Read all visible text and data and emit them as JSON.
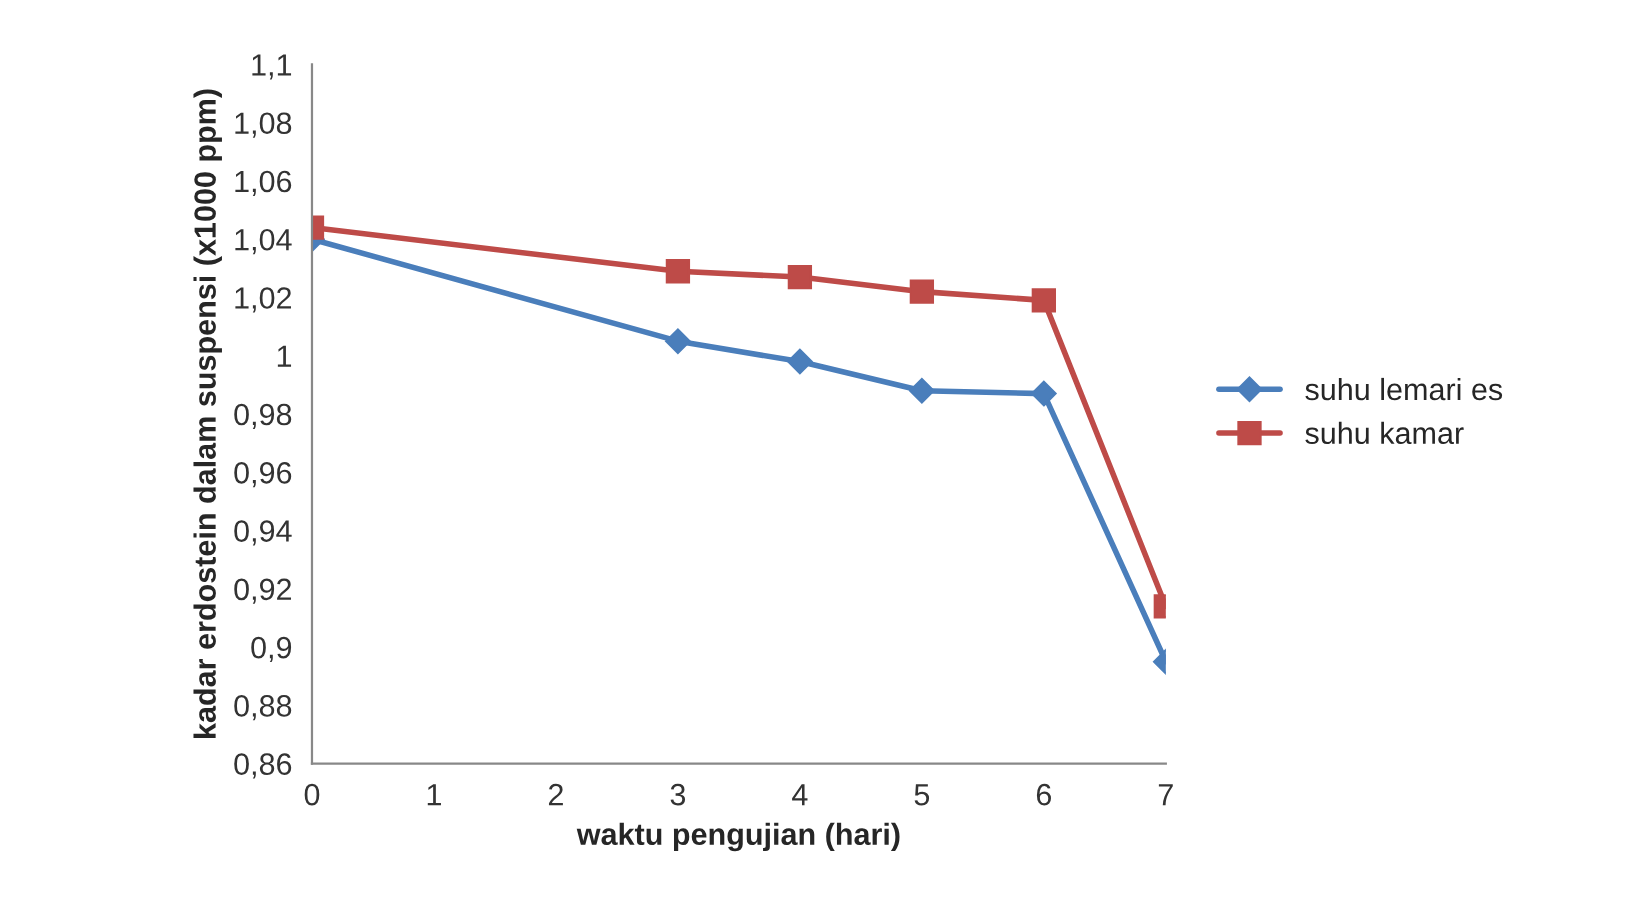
{
  "chart_data": {
    "type": "line",
    "xlabel": "waktu pengujian (hari)",
    "ylabel": "kadar erdostein dalam suspensi (x1000 ppm)",
    "x": [
      0,
      3,
      4,
      5,
      6,
      7
    ],
    "series": [
      {
        "name": "suhu lemari es",
        "color": "#4a7ebb",
        "marker": "diamond",
        "values": [
          1.04,
          1.005,
          0.998,
          0.988,
          0.987,
          0.895
        ]
      },
      {
        "name": "suhu kamar",
        "color": "#be4b48",
        "marker": "square",
        "values": [
          1.044,
          1.029,
          1.027,
          1.022,
          1.019,
          0.914
        ]
      }
    ],
    "xlim": [
      0,
      7
    ],
    "xticks": [
      0,
      1,
      2,
      3,
      4,
      5,
      6,
      7
    ],
    "ylim": [
      0.86,
      1.1
    ],
    "yticks": [
      {
        "value": 0.86,
        "label": "0,86"
      },
      {
        "value": 0.88,
        "label": "0,88"
      },
      {
        "value": 0.9,
        "label": "0,9"
      },
      {
        "value": 0.92,
        "label": "0,92"
      },
      {
        "value": 0.94,
        "label": "0,94"
      },
      {
        "value": 0.96,
        "label": "0,96"
      },
      {
        "value": 0.98,
        "label": "0,98"
      },
      {
        "value": 1,
        "label": "1"
      },
      {
        "value": 1.02,
        "label": "1,02"
      },
      {
        "value": 1.04,
        "label": "1,04"
      },
      {
        "value": 1.06,
        "label": "1,06"
      },
      {
        "value": 1.08,
        "label": "1,08"
      },
      {
        "value": 1.1,
        "label": "1,1"
      }
    ],
    "grid": false,
    "legend": "right",
    "line_style": "solid"
  }
}
